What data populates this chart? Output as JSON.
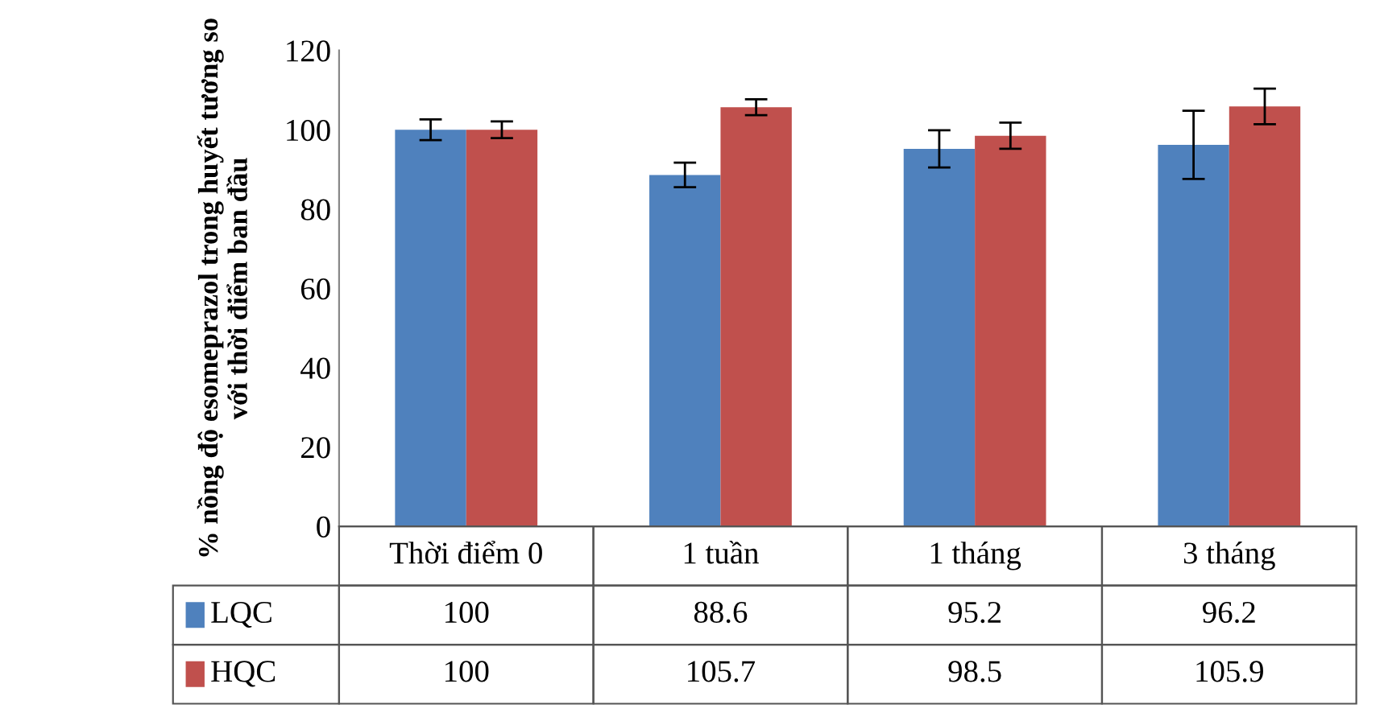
{
  "chart_data": {
    "type": "bar",
    "ylabel": "% nồng độ esomeprazol trong huyết tương so với thời điểm ban đầu",
    "categories": [
      "Thời điểm 0",
      "1 tuần",
      "1 tháng",
      "3 tháng"
    ],
    "series": [
      {
        "name": "LQC",
        "color": "#4f81bd",
        "values": [
          100,
          88.6,
          95.2,
          96.2
        ],
        "errors": [
          2.6,
          3.1,
          4.7,
          8.6
        ]
      },
      {
        "name": "HQC",
        "color": "#c0504d",
        "values": [
          100,
          105.7,
          98.5,
          105.9
        ],
        "errors": [
          2.1,
          2.0,
          3.3,
          4.5
        ]
      }
    ],
    "ylim": [
      0,
      120
    ],
    "yticks": [
      0,
      20,
      40,
      60,
      80,
      100,
      120
    ],
    "grid": false,
    "data_labels": true,
    "legend": "bottom left"
  }
}
